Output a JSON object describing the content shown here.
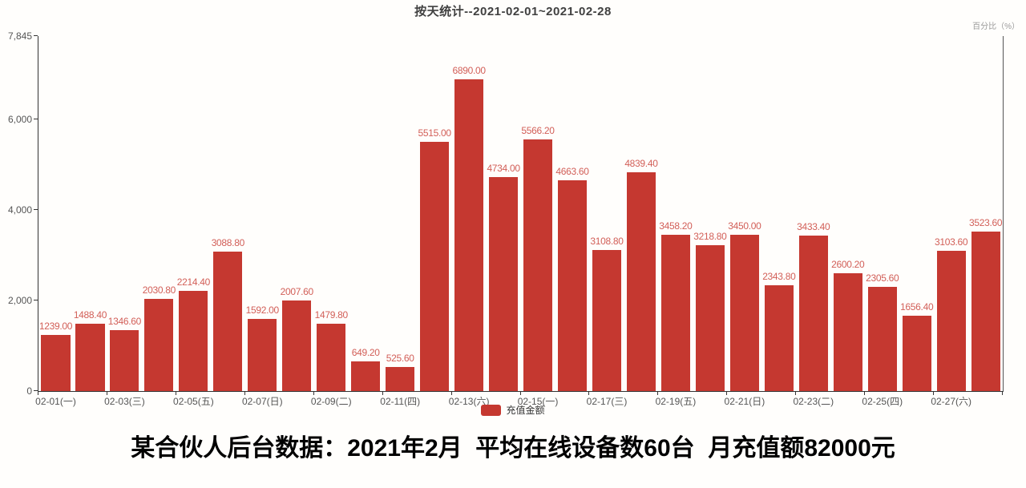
{
  "header": {
    "title": "按天统计--2021-02-01~2021-02-28",
    "right_axis_unit": "百分比（%）"
  },
  "legend": {
    "items": [
      {
        "label": "充值金额",
        "color": "#c53830"
      }
    ]
  },
  "caption": "某合伙人后台数据：2021年2月  平均在线设备数60台  月充值额82000元",
  "colors": {
    "bar": "#c53830",
    "value_label": "#d25f58",
    "axis_line": "#333333",
    "tick_text": "#555555"
  },
  "chart_data": {
    "type": "bar",
    "title": "按天统计--2021-02-01~2021-02-28",
    "ylabel_right": "百分比（%）",
    "ylim": [
      0,
      7845
    ],
    "grid": false,
    "legend_position": "bottom",
    "value_label_decimals": 2,
    "yticks": [
      {
        "label": "0",
        "value": 0
      },
      {
        "label": "2,000",
        "value": 2000
      },
      {
        "label": "4,000",
        "value": 4000
      },
      {
        "label": "6,000",
        "value": 6000
      },
      {
        "label": "7,845",
        "value": 7845
      }
    ],
    "xtick_interval": 2,
    "xtick_labels": [
      "02-01(一)",
      "02-03(三)",
      "02-05(五)",
      "02-07(日)",
      "02-09(二)",
      "02-11(四)",
      "02-13(六)",
      "02-15(一)",
      "02-17(三)",
      "02-19(五)",
      "02-21(日)",
      "02-23(二)",
      "02-25(四)",
      "02-27(六)"
    ],
    "series": [
      {
        "name": "充值金额",
        "values": [
          1239.0,
          1488.4,
          1346.6,
          2030.8,
          2214.4,
          3088.8,
          1592.0,
          2007.6,
          1479.8,
          649.2,
          525.6,
          5515.0,
          6890.0,
          4734.0,
          5566.2,
          4663.6,
          3108.8,
          4839.4,
          3458.2,
          3218.8,
          3450.0,
          2343.8,
          3433.4,
          2600.2,
          2305.6,
          1656.4,
          3103.6,
          3523.6
        ]
      }
    ]
  }
}
